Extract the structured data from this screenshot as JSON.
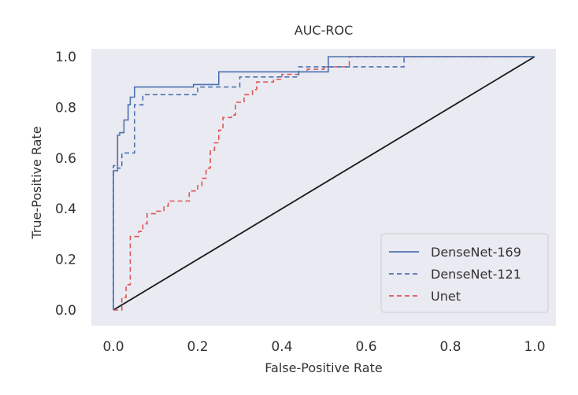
{
  "chart_data": {
    "type": "line",
    "title": "AUC-ROC",
    "xlabel": "False-Positive Rate",
    "ylabel": "True-Positive Rate",
    "xlim": [
      0.0,
      1.0
    ],
    "ylim": [
      0.0,
      1.0
    ],
    "xticks": [
      "0.0",
      "0.2",
      "0.4",
      "0.6",
      "0.8",
      "1.0"
    ],
    "yticks": [
      "0.0",
      "0.2",
      "0.4",
      "0.6",
      "0.8",
      "1.0"
    ],
    "grid": false,
    "background": "#eaeaf2",
    "legend_position": "lower-right",
    "series": [
      {
        "name": "DenseNet-169",
        "color": "#4c72b0",
        "style": "solid",
        "x": [
          0.0,
          0.0,
          0.01,
          0.01,
          0.015,
          0.015,
          0.025,
          0.025,
          0.035,
          0.035,
          0.04,
          0.04,
          0.05,
          0.05,
          0.19,
          0.19,
          0.25,
          0.25,
          0.51,
          0.51,
          1.0
        ],
        "y": [
          0.0,
          0.55,
          0.55,
          0.69,
          0.69,
          0.7,
          0.7,
          0.75,
          0.75,
          0.81,
          0.81,
          0.84,
          0.84,
          0.88,
          0.88,
          0.89,
          0.89,
          0.94,
          0.94,
          1.0,
          1.0
        ]
      },
      {
        "name": "DenseNet-121",
        "color": "#4c72b0",
        "style": "dashed",
        "x": [
          0.0,
          0.0,
          0.01,
          0.01,
          0.02,
          0.02,
          0.05,
          0.05,
          0.07,
          0.07,
          0.2,
          0.2,
          0.3,
          0.3,
          0.44,
          0.44,
          0.69,
          0.69,
          1.0
        ],
        "y": [
          0.0,
          0.57,
          0.57,
          0.56,
          0.56,
          0.62,
          0.62,
          0.81,
          0.81,
          0.85,
          0.85,
          0.88,
          0.88,
          0.92,
          0.92,
          0.96,
          0.96,
          1.0,
          1.0
        ]
      },
      {
        "name": "Unet",
        "color": "#dd5555",
        "style": "dashed",
        "x": [
          0.0,
          0.0,
          0.02,
          0.02,
          0.03,
          0.03,
          0.04,
          0.04,
          0.06,
          0.06,
          0.07,
          0.07,
          0.08,
          0.08,
          0.1,
          0.1,
          0.12,
          0.12,
          0.13,
          0.13,
          0.18,
          0.18,
          0.2,
          0.2,
          0.21,
          0.21,
          0.22,
          0.22,
          0.23,
          0.23,
          0.24,
          0.24,
          0.25,
          0.25,
          0.26,
          0.26,
          0.28,
          0.28,
          0.29,
          0.29,
          0.31,
          0.31,
          0.33,
          0.33,
          0.34,
          0.34,
          0.38,
          0.38,
          0.4,
          0.4,
          0.44,
          0.44,
          0.46,
          0.46,
          0.5,
          0.5,
          0.56,
          0.56,
          1.0
        ],
        "y": [
          0.0,
          0.0,
          0.0,
          0.05,
          0.05,
          0.1,
          0.1,
          0.29,
          0.29,
          0.31,
          0.31,
          0.34,
          0.34,
          0.38,
          0.38,
          0.39,
          0.39,
          0.41,
          0.41,
          0.43,
          0.43,
          0.47,
          0.47,
          0.49,
          0.49,
          0.52,
          0.52,
          0.56,
          0.56,
          0.63,
          0.63,
          0.66,
          0.66,
          0.71,
          0.71,
          0.76,
          0.76,
          0.77,
          0.77,
          0.82,
          0.82,
          0.85,
          0.85,
          0.87,
          0.87,
          0.9,
          0.9,
          0.91,
          0.91,
          0.93,
          0.93,
          0.94,
          0.94,
          0.95,
          0.95,
          0.96,
          0.96,
          1.0,
          1.0
        ]
      },
      {
        "name": "",
        "color": "#1a1a1a",
        "style": "solid",
        "x": [
          0.0,
          1.0
        ],
        "y": [
          0.0,
          1.0
        ]
      }
    ]
  }
}
